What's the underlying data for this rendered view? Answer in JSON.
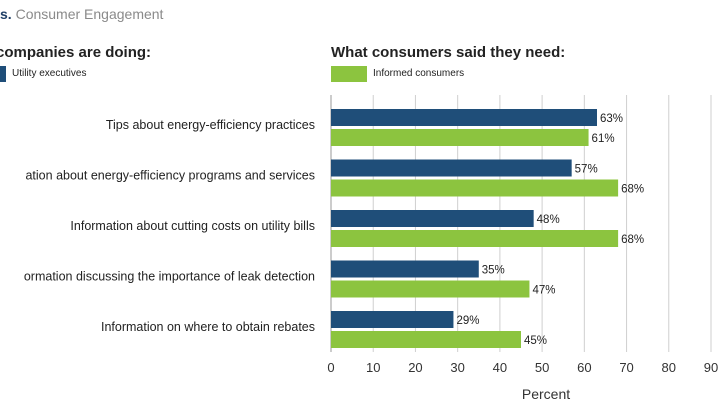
{
  "figure": {
    "number_label": "s.",
    "caption": "Consumer Engagement",
    "left_heading": "companies are doing:",
    "right_heading": "What consumers said they need:"
  },
  "legend": [
    {
      "label": "Utility executives",
      "color": "#1f4e79"
    },
    {
      "label": "Informed consumers",
      "color": "#8cc43f"
    }
  ],
  "chart_data": {
    "type": "bar",
    "orientation": "horizontal",
    "categories": [
      "Tips about energy-efficiency practices",
      "ation about energy-efficiency programs and services",
      "Information about cutting costs on utility bills",
      "ormation discussing the importance of leak detection",
      "Information on where to obtain rebates"
    ],
    "series": [
      {
        "name": "Utility executives",
        "values": [
          63,
          57,
          48,
          35,
          29
        ],
        "color": "#1f4e79"
      },
      {
        "name": "Informed consumers",
        "values": [
          61,
          68,
          68,
          47,
          45
        ],
        "color": "#8cc43f"
      }
    ],
    "xlabel": "Percent",
    "ylabel": "",
    "xlim": [
      0,
      90
    ],
    "xticks": [
      "0",
      "10",
      "20",
      "30",
      "40",
      "50",
      "60",
      "70",
      "80",
      "90"
    ],
    "value_suffix": "%",
    "grid": true
  }
}
